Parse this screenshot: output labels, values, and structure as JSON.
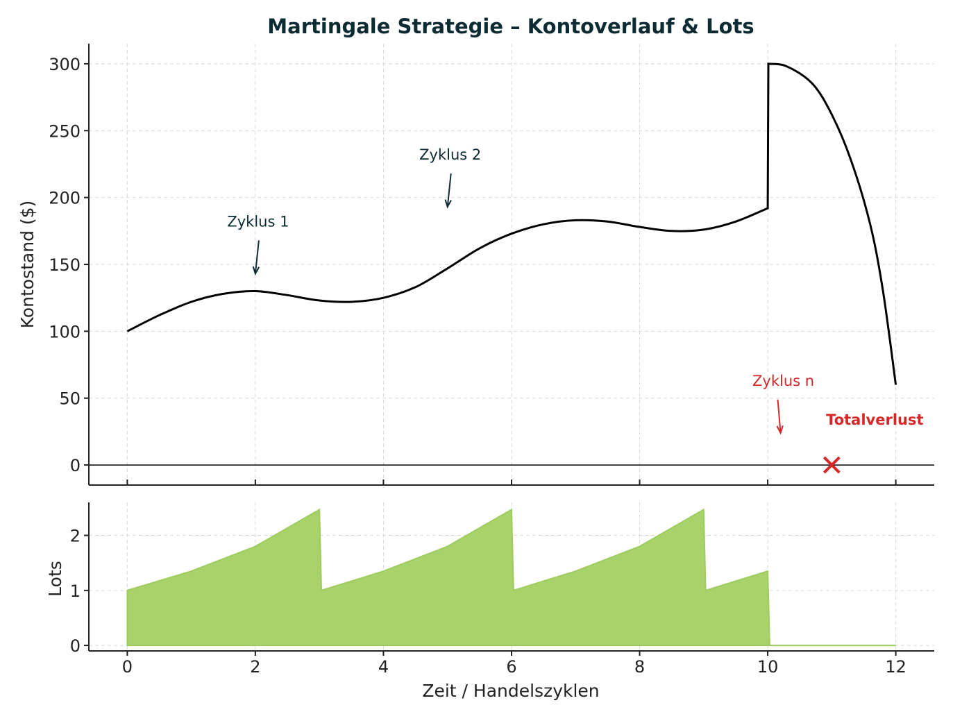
{
  "chart_data": [
    {
      "type": "line",
      "title": "Martingale Strategie – Kontoverlauf & Lots",
      "xlabel": "",
      "ylabel": "Kontostand ($)",
      "xlim": [
        -0.6,
        12.6
      ],
      "ylim": [
        -15,
        315
      ],
      "yticks": [
        0,
        50,
        100,
        150,
        200,
        250,
        300
      ],
      "grid": true,
      "series": [
        {
          "points": [
            [
              0,
              100
            ],
            [
              0.5,
              112
            ],
            [
              1,
              122
            ],
            [
              1.5,
              128
            ],
            [
              2,
              130
            ],
            [
              2.5,
              127
            ],
            [
              3,
              123
            ],
            [
              3.5,
              122
            ],
            [
              4,
              125
            ],
            [
              4.5,
              133
            ],
            [
              5,
              147
            ],
            [
              5.5,
              162
            ],
            [
              6,
              173
            ],
            [
              6.5,
              180
            ],
            [
              7,
              183
            ],
            [
              7.5,
              182
            ],
            [
              8,
              178
            ],
            [
              8.5,
              175
            ],
            [
              9,
              176
            ],
            [
              9.5,
              182
            ],
            [
              10,
              192
            ],
            [
              10.01,
              300
            ],
            [
              10.3,
              298
            ],
            [
              10.7,
              285
            ],
            [
              11,
              262
            ],
            [
              11.3,
              228
            ],
            [
              11.6,
              180
            ],
            [
              11.8,
              130
            ],
            [
              12,
              60
            ]
          ]
        }
      ],
      "reference_line": 0,
      "annotations": [
        {
          "text": "Zyklus 1",
          "x": 2,
          "y": 142,
          "color": "#0d2b33"
        },
        {
          "text": "Zyklus 2",
          "x": 5,
          "y": 192,
          "color": "#0d2b33"
        },
        {
          "text": "Zyklus n",
          "x": 10.2,
          "y": 23,
          "color": "#d62728"
        },
        {
          "text": "Totalverlust",
          "x": 11,
          "y": 0,
          "color": "#d62728",
          "marker": "x"
        }
      ]
    },
    {
      "type": "area",
      "title": "",
      "xlabel": "Zeit / Handelszyklen",
      "ylabel": "Lots",
      "xlim": [
        -0.6,
        12.6
      ],
      "ylim": [
        -0.1,
        2.6
      ],
      "xticks": [
        0,
        2,
        4,
        6,
        8,
        10,
        12
      ],
      "yticks": [
        0,
        1,
        2
      ],
      "grid": true,
      "fill_color": "#a8d26a",
      "series": [
        {
          "points": [
            [
              0,
              1
            ],
            [
              1,
              1.35
            ],
            [
              2,
              1.8
            ],
            [
              3,
              2.47
            ],
            [
              3.03,
              1
            ],
            [
              4,
              1.35
            ],
            [
              5,
              1.8
            ],
            [
              6,
              2.47
            ],
            [
              6.03,
              1
            ],
            [
              7,
              1.35
            ],
            [
              8,
              1.8
            ],
            [
              9,
              2.47
            ],
            [
              9.03,
              1
            ],
            [
              10,
              1.35
            ],
            [
              10.03,
              0
            ],
            [
              12,
              0
            ]
          ]
        }
      ]
    }
  ]
}
